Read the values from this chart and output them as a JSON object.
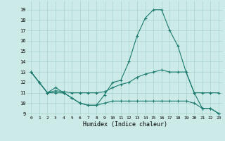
{
  "xlabel": "Humidex (Indice chaleur)",
  "background_color": "#cceae7",
  "grid_color": "#aad4d0",
  "line_color": "#1a7a6e",
  "max_y": [
    13,
    12,
    11,
    11.5,
    11,
    10.5,
    10,
    9.8,
    9.8,
    10.8,
    12,
    12.2,
    14,
    16.5,
    18.2,
    19,
    19,
    17,
    15.5,
    13,
    11,
    9.5,
    9.5,
    9
  ],
  "mean_y": [
    13,
    12,
    11,
    11.2,
    11.1,
    11,
    11,
    11,
    11,
    11.1,
    11.5,
    11.8,
    12,
    12.5,
    12.8,
    13,
    13.2,
    13,
    13,
    13,
    11,
    11,
    11,
    11
  ],
  "min_y": [
    13,
    12,
    11,
    11,
    11,
    10.5,
    10,
    9.8,
    9.8,
    10,
    10.2,
    10.2,
    10.2,
    10.2,
    10.2,
    10.2,
    10.2,
    10.2,
    10.2,
    10.2,
    10,
    9.5,
    9.5,
    9
  ],
  "x": [
    0,
    1,
    2,
    3,
    4,
    5,
    6,
    7,
    8,
    9,
    10,
    11,
    12,
    13,
    14,
    15,
    16,
    17,
    18,
    19,
    20,
    21,
    22,
    23
  ],
  "xlim": [
    -0.5,
    23.5
  ],
  "ylim": [
    8.8,
    19.8
  ],
  "yticks": [
    9,
    10,
    11,
    12,
    13,
    14,
    15,
    16,
    17,
    18,
    19
  ],
  "xticks": [
    0,
    1,
    2,
    3,
    4,
    5,
    6,
    7,
    8,
    9,
    10,
    11,
    12,
    13,
    14,
    15,
    16,
    17,
    18,
    19,
    20,
    21,
    22,
    23
  ],
  "marker": "+"
}
